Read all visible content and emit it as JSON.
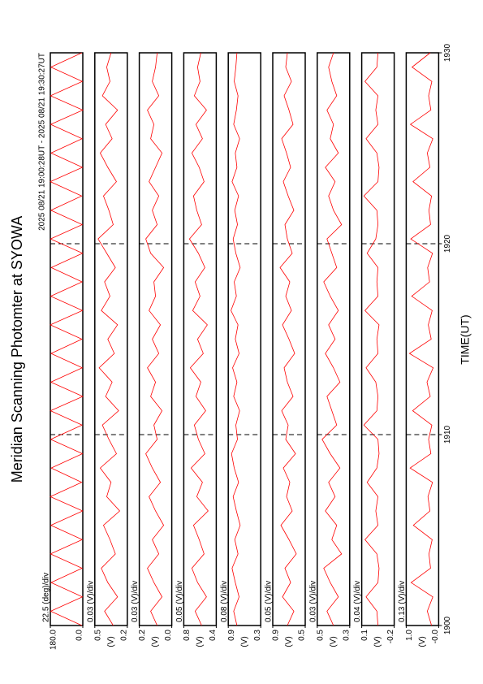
{
  "chart_data": {
    "type": "line",
    "title": "Meridian Scanning Photomter at SYOWA",
    "subtitle": "2025 08/21 19:00:28UT - 2025 08/21 19:30:27UT",
    "xlabel": "TIME(UT)",
    "xlim": [
      1900,
      1930
    ],
    "xticks": [
      1900,
      1910,
      1920,
      1930
    ],
    "x": [
      1900,
      1900.75,
      1901.5,
      1902.25,
      1903,
      1903.75,
      1904.5,
      1905.25,
      1906,
      1906.75,
      1907.5,
      1908.25,
      1909,
      1909.75,
      1910.5,
      1911.25,
      1912,
      1912.75,
      1913.5,
      1914.25,
      1915,
      1915.75,
      1916.5,
      1917.25,
      1918,
      1918.75,
      1919.5,
      1920.25,
      1921,
      1921.75,
      1922.5,
      1923.25,
      1924,
      1924.75,
      1925.5,
      1926.25,
      1927,
      1927.75,
      1928.5,
      1929.25,
      1930
    ],
    "panels": [
      {
        "scale_label": "22.5 (deg)/div",
        "color": "#ff0000",
        "ylim": [
          0,
          180
        ],
        "yticks": [
          {
            "value": 0,
            "label": "0.0"
          },
          {
            "value": 180,
            "label": "180.0"
          }
        ],
        "values": [
          5,
          178,
          2,
          176,
          4,
          179,
          3,
          177,
          1,
          180,
          6,
          175,
          2,
          178,
          4,
          179,
          0,
          177,
          3,
          176,
          5,
          180,
          2,
          178,
          4,
          175,
          1,
          179,
          3,
          177,
          6,
          180,
          2,
          176,
          4,
          178,
          0,
          179,
          3,
          177,
          5
        ]
      },
      {
        "scale_label": "0.03 (V)/div",
        "unit": "(V)",
        "color": "#ff0000",
        "ylim": [
          0.2,
          0.5
        ],
        "yticks": [
          0.2,
          0.5
        ],
        "values": [
          0.33,
          0.41,
          0.29,
          0.38,
          0.44,
          0.31,
          0.36,
          0.42,
          0.27,
          0.39,
          0.35,
          0.45,
          0.3,
          0.37,
          0.43,
          0.28,
          0.4,
          0.34,
          0.46,
          0.32,
          0.38,
          0.29,
          0.44,
          0.36,
          0.41,
          0.31,
          0.39,
          0.47,
          0.33,
          0.37,
          0.42,
          0.3,
          0.38,
          0.45,
          0.34,
          0.4,
          0.29,
          0.43,
          0.36,
          0.39,
          0.35
        ]
      },
      {
        "scale_label": "0.03 (V)/div",
        "unit": "(V)",
        "color": "#ff0000",
        "ylim": [
          0,
          0.2
        ],
        "yticks": [
          {
            "value": 0,
            "label": "0.0"
          },
          0.2
        ],
        "values": [
          0.09,
          0.13,
          0.06,
          0.11,
          0.15,
          0.08,
          0.12,
          0.05,
          0.1,
          0.14,
          0.07,
          0.12,
          0.16,
          0.09,
          0.11,
          0.06,
          0.13,
          0.1,
          0.15,
          0.08,
          0.12,
          0.07,
          0.14,
          0.1,
          0.11,
          0.05,
          0.13,
          0.16,
          0.09,
          0.12,
          0.08,
          0.14,
          0.1,
          0.06,
          0.13,
          0.11,
          0.15,
          0.08,
          0.12,
          0.1,
          0.09
        ]
      },
      {
        "scale_label": "0.05 (V)/div",
        "unit": "(V)",
        "color": "#ff0000",
        "ylim": [
          0.4,
          0.8
        ],
        "yticks": [
          0.4,
          0.8
        ],
        "values": [
          0.58,
          0.66,
          0.52,
          0.63,
          0.7,
          0.55,
          0.61,
          0.68,
          0.5,
          0.64,
          0.57,
          0.71,
          0.54,
          0.62,
          0.67,
          0.53,
          0.65,
          0.59,
          0.72,
          0.56,
          0.63,
          0.51,
          0.69,
          0.6,
          0.66,
          0.54,
          0.62,
          0.73,
          0.58,
          0.64,
          0.68,
          0.55,
          0.61,
          0.7,
          0.57,
          0.65,
          0.52,
          0.67,
          0.6,
          0.63,
          0.59
        ]
      },
      {
        "scale_label": "0.08 (V)/div",
        "unit": "(V)",
        "color": "#ff0000",
        "ylim": [
          0.3,
          0.9
        ],
        "yticks": [
          0.3,
          0.9
        ],
        "values": [
          0.74,
          0.8,
          0.7,
          0.77,
          0.83,
          0.72,
          0.78,
          0.68,
          0.75,
          0.81,
          0.71,
          0.79,
          0.84,
          0.73,
          0.76,
          0.69,
          0.8,
          0.74,
          0.82,
          0.7,
          0.77,
          0.72,
          0.85,
          0.75,
          0.79,
          0.68,
          0.76,
          0.81,
          0.73,
          0.78,
          0.71,
          0.83,
          0.74,
          0.77,
          0.69,
          0.8,
          0.75,
          0.72,
          0.79,
          0.76,
          0.74
        ]
      },
      {
        "scale_label": "0.05 (V)/div",
        "unit": "(V)",
        "color": "#ff0000",
        "ylim": [
          0.5,
          0.9
        ],
        "yticks": [
          0.5,
          0.9
        ],
        "values": [
          0.72,
          0.64,
          0.78,
          0.68,
          0.75,
          0.61,
          0.7,
          0.8,
          0.66,
          0.73,
          0.69,
          0.77,
          0.62,
          0.74,
          0.71,
          0.79,
          0.65,
          0.72,
          0.76,
          0.63,
          0.7,
          0.78,
          0.67,
          0.74,
          0.69,
          0.81,
          0.66,
          0.72,
          0.75,
          0.64,
          0.71,
          0.77,
          0.68,
          0.73,
          0.79,
          0.65,
          0.7,
          0.76,
          0.67,
          0.74,
          0.72
        ]
      },
      {
        "scale_label": "0.03 (V)/div",
        "unit": "(V)",
        "color": "#ff0000",
        "ylim": [
          0.3,
          0.5
        ],
        "yticks": [
          0.3,
          0.5
        ],
        "values": [
          0.4,
          0.44,
          0.37,
          0.42,
          0.46,
          0.35,
          0.41,
          0.38,
          0.45,
          0.39,
          0.43,
          0.36,
          0.42,
          0.47,
          0.38,
          0.41,
          0.44,
          0.36,
          0.4,
          0.45,
          0.39,
          0.43,
          0.37,
          0.42,
          0.46,
          0.38,
          0.41,
          0.44,
          0.35,
          0.4,
          0.43,
          0.39,
          0.45,
          0.37,
          0.42,
          0.4,
          0.44,
          0.38,
          0.41,
          0.43,
          0.4
        ]
      },
      {
        "scale_label": "0.04 (V)/div",
        "unit": "(V)",
        "color": "#ff0000",
        "ylim": [
          -0.2,
          0.1
        ],
        "yticks": [
          -0.2,
          0.1
        ],
        "values": [
          -0.05,
          -0.04,
          0.06,
          -0.05,
          -0.06,
          -0.04,
          0.07,
          -0.05,
          -0.03,
          -0.05,
          0.05,
          -0.04,
          -0.06,
          -0.05,
          0.08,
          -0.04,
          -0.05,
          -0.03,
          0.06,
          -0.05,
          -0.04,
          -0.06,
          0.07,
          -0.05,
          -0.04,
          -0.05,
          0.05,
          -0.03,
          -0.05,
          -0.04,
          0.08,
          -0.05,
          -0.06,
          -0.04,
          0.06,
          -0.05,
          -0.03,
          -0.05,
          0.07,
          -0.04,
          -0.05
        ]
      },
      {
        "scale_label": "0.13 (V)/div",
        "unit": "(V)",
        "color": "#ff0000",
        "ylim": [
          0,
          1
        ],
        "yticks": [
          {
            "value": 0,
            "label": "-0.0"
          },
          {
            "value": 1,
            "label": "1.0"
          }
        ],
        "values": [
          0.22,
          0.35,
          0.18,
          0.85,
          0.25,
          0.3,
          0.2,
          0.78,
          0.27,
          0.33,
          0.19,
          0.88,
          0.24,
          0.31,
          0.21,
          0.8,
          0.26,
          0.36,
          0.17,
          0.9,
          0.23,
          0.32,
          0.2,
          0.83,
          0.28,
          0.34,
          0.19,
          0.86,
          0.25,
          0.3,
          0.22,
          0.79,
          0.27,
          0.35,
          0.18,
          0.87,
          0.24,
          0.31,
          0.21,
          0.82,
          0.26
        ]
      }
    ]
  }
}
